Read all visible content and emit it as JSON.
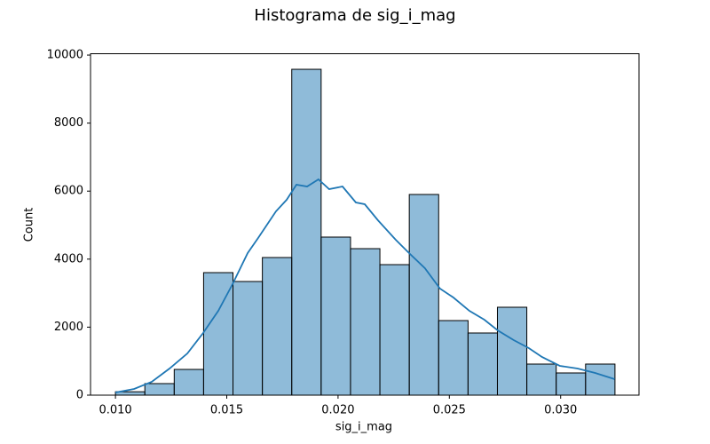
{
  "chart_data": {
    "type": "histogram",
    "title": "Histograma de sig_i_mag",
    "x_label": "sig_i_mag",
    "y_label": "Count",
    "bins": [
      0.01,
      0.01132,
      0.01264,
      0.01396,
      0.01528,
      0.0166,
      0.01792,
      0.01924,
      0.02056,
      0.02188,
      0.0232,
      0.02452,
      0.02584,
      0.02716,
      0.02848,
      0.0298,
      0.03112,
      0.03244
    ],
    "counts": [
      100,
      340,
      757,
      3603,
      3342,
      4047,
      9582,
      4648,
      4308,
      3838,
      5901,
      2193,
      1828,
      2585,
      914,
      653,
      914
    ],
    "color": "#1f77b4",
    "kde": {
      "x": [
        0.01,
        0.01084,
        0.01163,
        0.01243,
        0.01323,
        0.01394,
        0.01462,
        0.01526,
        0.01594,
        0.01641,
        0.01721,
        0.01769,
        0.01813,
        0.01861,
        0.01912,
        0.0196,
        0.0202,
        0.0208,
        0.0212,
        0.02179,
        0.02259,
        0.02319,
        0.0239,
        0.02458,
        0.02518,
        0.0259,
        0.02657,
        0.02717,
        0.02789,
        0.02857,
        0.02916,
        0.02996,
        0.03076,
        0.03155,
        0.03243
      ],
      "values": [
        78,
        183,
        392,
        783,
        1227,
        1828,
        2480,
        3264,
        4178,
        4621,
        5405,
        5744,
        6188,
        6136,
        6345,
        6057,
        6136,
        5666,
        5614,
        5144,
        4569,
        4178,
        3734,
        3133,
        2872,
        2480,
        2219,
        1906,
        1619,
        1384,
        1123,
        862,
        783,
        653,
        470
      ]
    },
    "xlim": [
      0.00888,
      0.03352
    ],
    "ylim": [
      0,
      10040
    ],
    "xticks": [
      {
        "value": 0.01,
        "label": "0.010"
      },
      {
        "value": 0.015,
        "label": "0.015"
      },
      {
        "value": 0.02,
        "label": "0.020"
      },
      {
        "value": 0.025,
        "label": "0.025"
      },
      {
        "value": 0.03,
        "label": "0.030"
      }
    ],
    "yticks": [
      0,
      2000,
      4000,
      6000,
      8000,
      10000
    ]
  }
}
